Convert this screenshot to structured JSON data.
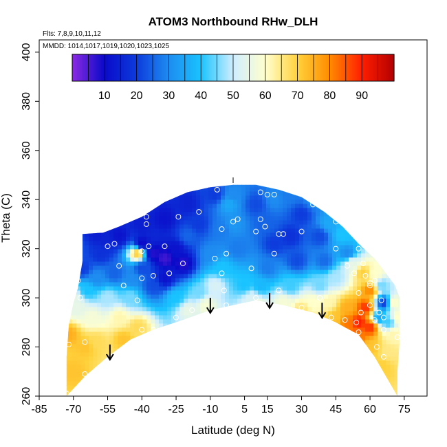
{
  "chart_data": {
    "type": "heatmap",
    "title": "ATOM3 Northbound RHw_DLH",
    "subtitle_lines": [
      "Flts: 7,8,9,10,11,12",
      "MMDD: 1014,1017,1019,1020,1023,1025"
    ],
    "xlabel": "Latitude (deg N)",
    "ylabel": "Theta (C)",
    "xlim": [
      -85,
      85
    ],
    "ylim": [
      260,
      405
    ],
    "xticks": [
      -85,
      -70,
      -55,
      -40,
      -25,
      -10,
      5,
      15,
      30,
      45,
      60,
      75
    ],
    "yticks": [
      260,
      280,
      300,
      320,
      340,
      360,
      380,
      400
    ],
    "colorbar": {
      "range": [
        0,
        100
      ],
      "tick_values": [
        10,
        20,
        30,
        40,
        50,
        60,
        70,
        80,
        90
      ],
      "colors": [
        "#8a2be2",
        "#0a0ac8",
        "#0d3bdc",
        "#1e8cf0",
        "#19c3ff",
        "#cfeeff",
        "#ffffcc",
        "#ffd23c",
        "#ff8c00",
        "#ff1e00",
        "#b40000"
      ]
    },
    "region": {
      "left": [
        [
          -73,
          260
        ],
        [
          -73,
          276
        ],
        [
          -72,
          289
        ],
        [
          -70,
          298
        ],
        [
          -68,
          304
        ],
        [
          -66,
          315
        ],
        [
          -66,
          326
        ]
      ],
      "top": [
        [
          -66,
          326
        ],
        [
          -57,
          326.5
        ],
        [
          -50,
          329
        ],
        [
          -40,
          333
        ],
        [
          -30,
          339
        ],
        [
          -20,
          343
        ],
        [
          -10,
          345
        ],
        [
          0,
          346
        ],
        [
          10,
          346
        ],
        [
          20,
          344
        ],
        [
          30,
          341
        ],
        [
          40,
          335
        ],
        [
          48,
          329
        ],
        [
          55,
          322
        ],
        [
          62,
          316
        ],
        [
          67,
          310
        ],
        [
          71,
          305
        ],
        [
          73,
          300
        ]
      ],
      "right": [
        [
          73,
          300
        ],
        [
          73,
          282
        ],
        [
          72,
          270
        ],
        [
          72,
          260
        ]
      ],
      "bottom": [
        [
          72,
          260
        ],
        [
          62,
          276
        ],
        [
          55,
          285
        ],
        [
          45,
          290
        ],
        [
          35,
          294
        ],
        [
          22,
          297
        ],
        [
          10,
          299
        ],
        [
          0,
          297
        ],
        [
          -10,
          295
        ],
        [
          -22,
          291
        ],
        [
          -35,
          287
        ],
        [
          -45,
          283
        ],
        [
          -55,
          276
        ],
        [
          -65,
          268
        ],
        [
          -73,
          260
        ]
      ]
    },
    "field_points": [
      [
        -70,
        270,
        72
      ],
      [
        -72,
        285,
        75
      ],
      [
        -65,
        280,
        72
      ],
      [
        -60,
        282,
        68
      ],
      [
        -62,
        292,
        58
      ],
      [
        -68,
        296,
        55
      ],
      [
        -64,
        303,
        40
      ],
      [
        -66,
        312,
        20
      ],
      [
        -58,
        318,
        18
      ],
      [
        -60,
        308,
        30
      ],
      [
        -55,
        300,
        48
      ],
      [
        -50,
        292,
        62
      ],
      [
        -48,
        283,
        72
      ],
      [
        -42,
        288,
        68
      ],
      [
        -45,
        300,
        45
      ],
      [
        -44,
        308,
        30
      ],
      [
        -40,
        312,
        22
      ],
      [
        -42,
        318,
        70
      ],
      [
        -40,
        322,
        10
      ],
      [
        -35,
        318,
        8
      ],
      [
        -30,
        316,
        6
      ],
      [
        -25,
        320,
        12
      ],
      [
        -22,
        314,
        8
      ],
      [
        -30,
        308,
        12
      ],
      [
        -25,
        300,
        40
      ],
      [
        -20,
        295,
        55
      ],
      [
        -15,
        302,
        45
      ],
      [
        -12,
        297,
        58
      ],
      [
        -8,
        305,
        52
      ],
      [
        -5,
        312,
        40
      ],
      [
        -10,
        318,
        30
      ],
      [
        -5,
        328,
        28
      ],
      [
        -2,
        338,
        35
      ],
      [
        -8,
        342,
        20
      ],
      [
        -20,
        338,
        15
      ],
      [
        -30,
        332,
        12
      ],
      [
        -40,
        330,
        14
      ],
      [
        -50,
        325,
        12
      ],
      [
        -56,
        323,
        15
      ],
      [
        0,
        330,
        32
      ],
      [
        2,
        320,
        28
      ],
      [
        5,
        305,
        40
      ],
      [
        8,
        300,
        52
      ],
      [
        10,
        296,
        62
      ],
      [
        12,
        305,
        38
      ],
      [
        15,
        312,
        28
      ],
      [
        18,
        322,
        20
      ],
      [
        14,
        330,
        25
      ],
      [
        18,
        340,
        30
      ],
      [
        25,
        342,
        28
      ],
      [
        30,
        334,
        20
      ],
      [
        25,
        325,
        18
      ],
      [
        28,
        315,
        22
      ],
      [
        25,
        305,
        42
      ],
      [
        22,
        298,
        58
      ],
      [
        30,
        295,
        66
      ],
      [
        35,
        298,
        60
      ],
      [
        38,
        305,
        45
      ],
      [
        40,
        315,
        26
      ],
      [
        38,
        325,
        22
      ],
      [
        42,
        330,
        35
      ],
      [
        48,
        326,
        40
      ],
      [
        50,
        318,
        30
      ],
      [
        45,
        308,
        48
      ],
      [
        42,
        298,
        62
      ],
      [
        45,
        292,
        72
      ],
      [
        50,
        290,
        82
      ],
      [
        55,
        290,
        90
      ],
      [
        58,
        296,
        88
      ],
      [
        60,
        303,
        80
      ],
      [
        57,
        310,
        70
      ],
      [
        52,
        314,
        55
      ],
      [
        62,
        310,
        60
      ],
      [
        65,
        305,
        45
      ],
      [
        66,
        298,
        20
      ],
      [
        64,
        292,
        35
      ],
      [
        68,
        290,
        42
      ],
      [
        70,
        285,
        62
      ],
      [
        68,
        278,
        65
      ],
      [
        65,
        272,
        70
      ],
      [
        60,
        280,
        72
      ],
      [
        55,
        284,
        82
      ],
      [
        60,
        288,
        88
      ],
      [
        50,
        296,
        75
      ],
      [
        -70,
        300,
        55
      ],
      [
        -68,
        320,
        22
      ],
      [
        -52,
        310,
        25
      ],
      [
        -35,
        305,
        22
      ],
      [
        -15,
        330,
        20
      ],
      [
        -20,
        325,
        25
      ],
      [
        35,
        340,
        30
      ],
      [
        10,
        338,
        22
      ],
      [
        0,
        342,
        30
      ],
      [
        -60,
        326,
        14
      ],
      [
        70,
        298,
        60
      ],
      [
        72,
        292,
        60
      ]
    ],
    "obs_points": [
      [
        -73,
        261
      ],
      [
        -72,
        281
      ],
      [
        -67,
        300
      ],
      [
        -68,
        307
      ],
      [
        -68,
        325
      ],
      [
        -65,
        282
      ],
      [
        -65,
        269
      ],
      [
        -55,
        321
      ],
      [
        -52,
        322
      ],
      [
        -50,
        313
      ],
      [
        -48,
        305
      ],
      [
        -42,
        299
      ],
      [
        -40,
        308
      ],
      [
        -40,
        319
      ],
      [
        -40,
        287
      ],
      [
        -35,
        309
      ],
      [
        -35,
        287
      ],
      [
        -37,
        321
      ],
      [
        -38,
        330
      ],
      [
        -38,
        333
      ],
      [
        -30,
        321
      ],
      [
        -28,
        310
      ],
      [
        -25,
        292
      ],
      [
        -24,
        333
      ],
      [
        -22,
        314
      ],
      [
        -18,
        295
      ],
      [
        -15,
        335
      ],
      [
        -8,
        316
      ],
      [
        -5,
        310
      ],
      [
        -4,
        303
      ],
      [
        -3,
        297
      ],
      [
        -5,
        328
      ],
      [
        -3,
        318
      ],
      [
        -7,
        344
      ],
      [
        0,
        331
      ],
      [
        2,
        332
      ],
      [
        8,
        312
      ],
      [
        10,
        300
      ],
      [
        10,
        327
      ],
      [
        12,
        332
      ],
      [
        12,
        343
      ],
      [
        14,
        329
      ],
      [
        15,
        342
      ],
      [
        18,
        318
      ],
      [
        18,
        342
      ],
      [
        20,
        303
      ],
      [
        20,
        326
      ],
      [
        22,
        326
      ],
      [
        30,
        296
      ],
      [
        30,
        327
      ],
      [
        35,
        338
      ],
      [
        38,
        300
      ],
      [
        43,
        292
      ],
      [
        45,
        331
      ],
      [
        45,
        320
      ],
      [
        48,
        332
      ],
      [
        49,
        291
      ],
      [
        55,
        286
      ],
      [
        55,
        302
      ],
      [
        56,
        294
      ],
      [
        57,
        314
      ],
      [
        58,
        309
      ],
      [
        60,
        305
      ],
      [
        60,
        297
      ],
      [
        62,
        307
      ],
      [
        62,
        291
      ],
      [
        64,
        294
      ],
      [
        65,
        299
      ],
      [
        66,
        292
      ],
      [
        66,
        287
      ],
      [
        66,
        276
      ],
      [
        63,
        280
      ],
      [
        54,
        290
      ],
      [
        50,
        313
      ],
      [
        53,
        310
      ],
      [
        55,
        320
      ],
      [
        60,
        306
      ],
      [
        72,
        284
      ]
    ],
    "arrows": [
      [
        -54,
        281
      ],
      [
        -10,
        300
      ],
      [
        16,
        302
      ],
      [
        39,
        298
      ]
    ]
  }
}
